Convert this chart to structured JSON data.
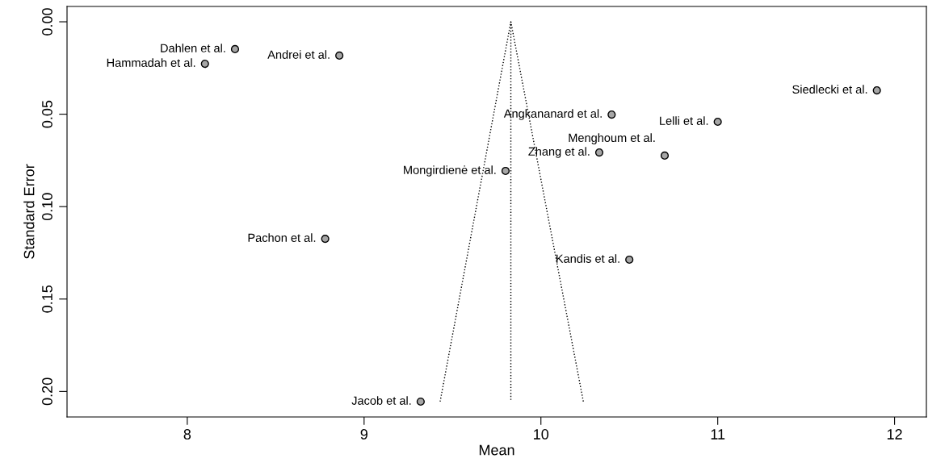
{
  "chart_data": {
    "type": "scatter",
    "xlabel": "Mean",
    "ylabel": "Standard Error",
    "xlim": [
      7.32,
      12.18
    ],
    "ylim": [
      0.2138,
      -0.0083
    ],
    "xticks": [
      8,
      9,
      10,
      11,
      12
    ],
    "yticks": [
      {
        "value": 0,
        "label": "0.00"
      },
      {
        "value": 0.05,
        "label": "0.05"
      },
      {
        "value": 0.1,
        "label": "0.10"
      },
      {
        "value": 0.15,
        "label": "0.15"
      },
      {
        "value": 0.2,
        "label": "0.20"
      }
    ],
    "grid": false,
    "legend": false,
    "marker": "circle",
    "series": [
      {
        "color": "#a6a6a6",
        "x": [
          8.27,
          8.1,
          8.86,
          11.9,
          10.4,
          11.0,
          10.33,
          10.7,
          9.8,
          8.78,
          10.5,
          9.32
        ],
        "values": [
          0.0148,
          0.0227,
          0.0183,
          0.0371,
          0.0502,
          0.0541,
          0.0707,
          0.0724,
          0.0807,
          0.1174,
          0.1287,
          0.2055
        ]
      },
      {
        "type": "line",
        "color": "#000000",
        "line_style": "dotted",
        "marker": "none",
        "x": [
          9.43,
          9.83,
          10.24
        ],
        "values": [
          0.2055,
          0,
          0.2055
        ]
      },
      {
        "type": "line",
        "color": "#000000",
        "line_style": "dotted",
        "marker": "none",
        "x": [
          9.83,
          9.83
        ],
        "values": [
          0,
          0.2055
        ]
      }
    ],
    "annotations": [
      {
        "text": "Dahlen et al.",
        "x": 8.27,
        "y": 0.0148
      },
      {
        "text": "Hammadah et al.",
        "x": 8.1,
        "y": 0.0227
      },
      {
        "text": "Andrei et al.",
        "x": 8.86,
        "y": 0.0183
      },
      {
        "text": "Siedlecki et al.",
        "x": 11.9,
        "y": 0.0371
      },
      {
        "text": "Angkananard et al.",
        "x": 10.4,
        "y": 0.0502
      },
      {
        "text": "Lelli et al.",
        "x": 11.0,
        "y": 0.0541
      },
      {
        "text": "Zhang et al.",
        "x": 10.33,
        "y": 0.0707
      },
      {
        "text": "Menghoum et al.",
        "x": 10.7,
        "y": 0.0724
      },
      {
        "text": "Mongirdienė et al.",
        "x": 9.8,
        "y": 0.0807
      },
      {
        "text": "Pachon et al.",
        "x": 8.78,
        "y": 0.1174
      },
      {
        "text": "Kandis et al.",
        "x": 10.5,
        "y": 0.1287
      },
      {
        "text": "Jacob et al.",
        "x": 9.32,
        "y": 0.2055
      }
    ]
  }
}
